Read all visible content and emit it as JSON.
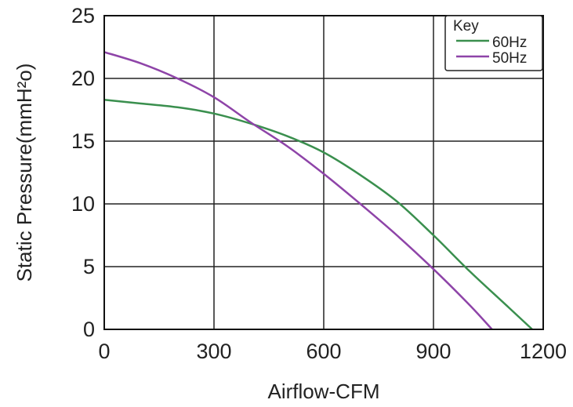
{
  "chart_data": {
    "type": "line",
    "title": "",
    "xlabel": "Airflow-CFM",
    "ylabel": "Static Pressure(mmH²o)",
    "xlim": [
      0,
      1200
    ],
    "ylim": [
      0,
      25
    ],
    "xticks": [
      0,
      300,
      600,
      900,
      1200
    ],
    "yticks": [
      0,
      5,
      10,
      15,
      20,
      25
    ],
    "xtick_labels": [
      "0",
      "300",
      "600",
      "900",
      "1200"
    ],
    "ytick_labels": [
      "0",
      "5",
      "10",
      "15",
      "20",
      "25"
    ],
    "grid": true,
    "legend": {
      "title": "Key",
      "placement": "top-right"
    },
    "series": [
      {
        "name": "60Hz",
        "color": "#3a8f4e",
        "x": [
          0,
          100,
          200,
          300,
          400,
          500,
          600,
          700,
          800,
          900,
          1000,
          1100,
          1170
        ],
        "y": [
          18.3,
          18.0,
          17.7,
          17.2,
          16.4,
          15.4,
          14.1,
          12.3,
          10.2,
          7.5,
          4.6,
          1.9,
          0
        ]
      },
      {
        "name": "50Hz",
        "color": "#8e44a8",
        "x": [
          0,
          100,
          200,
          300,
          400,
          500,
          600,
          700,
          800,
          900,
          1000,
          1060
        ],
        "y": [
          22.1,
          21.2,
          20.0,
          18.5,
          16.5,
          14.6,
          12.4,
          10.0,
          7.5,
          4.8,
          1.9,
          0
        ]
      }
    ]
  }
}
